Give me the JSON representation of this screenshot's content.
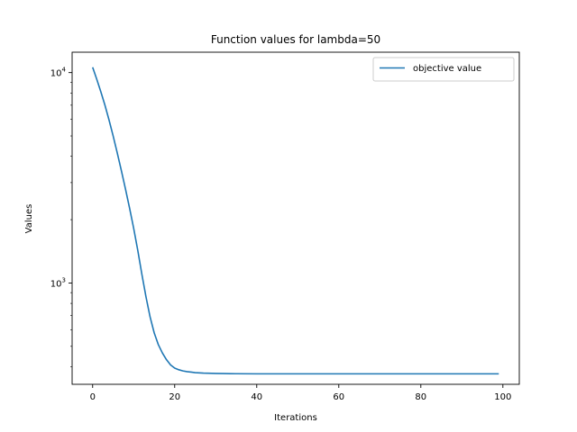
{
  "chart_data": {
    "type": "line",
    "title": "Function values for lambda=50",
    "xlabel": "Iterations",
    "ylabel": "Values",
    "xscale": "linear",
    "yscale": "log",
    "xlim": [
      -5,
      104
    ],
    "ylim": [
      330,
      12500
    ],
    "x_ticks": [
      0,
      20,
      40,
      60,
      80,
      100
    ],
    "y_major_ticks": [
      {
        "value": 1000,
        "base": "10",
        "exp": "3"
      },
      {
        "value": 10000,
        "base": "10",
        "exp": "4"
      }
    ],
    "y_minor_ticks": [
      400,
      500,
      600,
      700,
      800,
      900,
      2000,
      3000,
      4000,
      5000,
      6000,
      7000,
      8000,
      9000
    ],
    "grid": false,
    "legend_position": "top-right",
    "color": "#1f77b4",
    "series": [
      {
        "name": "objective value",
        "x": [
          0,
          1,
          2,
          3,
          4,
          5,
          6,
          7,
          8,
          9,
          10,
          11,
          12,
          13,
          14,
          15,
          16,
          17,
          18,
          19,
          20,
          21,
          22,
          23,
          24,
          25,
          26,
          27,
          28,
          29,
          30,
          32,
          35,
          40,
          50,
          60,
          70,
          80,
          90,
          99
        ],
        "y": [
          10600,
          9300,
          8100,
          7000,
          5950,
          5000,
          4150,
          3420,
          2800,
          2270,
          1820,
          1430,
          1100,
          860,
          690,
          580,
          510,
          465,
          432,
          408,
          394,
          387,
          382,
          379,
          377,
          375,
          374,
          373,
          372.5,
          372,
          371.5,
          371,
          370.5,
          370,
          370,
          370,
          370,
          370,
          370,
          370
        ]
      }
    ]
  }
}
